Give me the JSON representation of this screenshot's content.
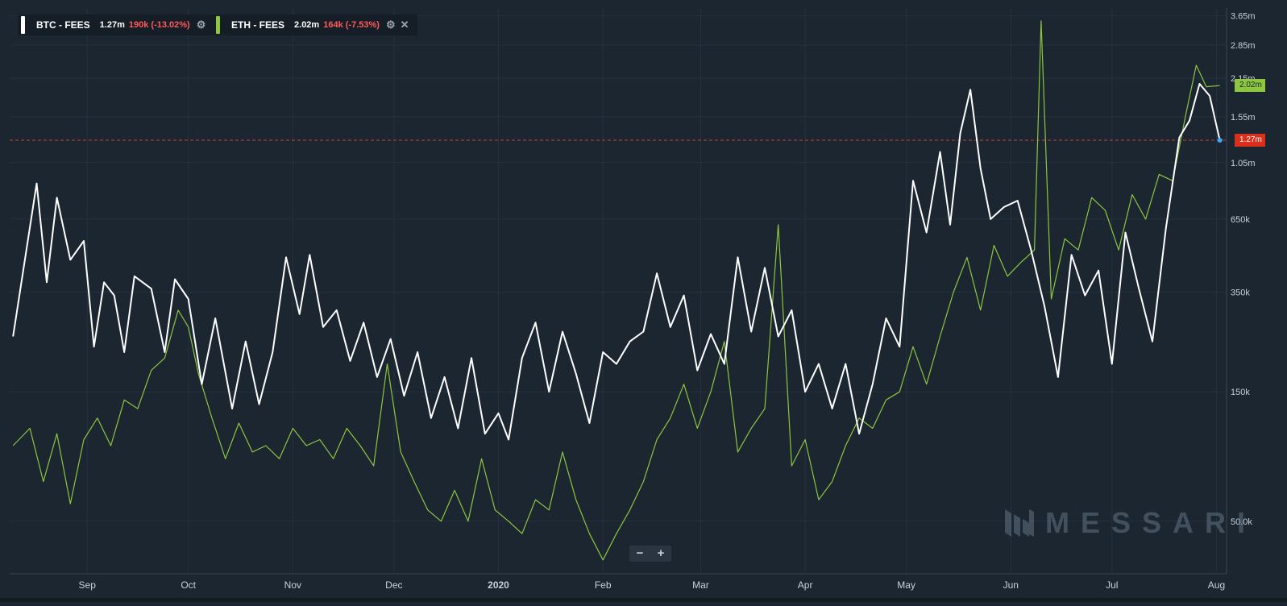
{
  "legend": {
    "btc": {
      "name": "BTC - FEES",
      "value": "1.27m",
      "change": "190k (-13.02%)",
      "color": "#ffffff",
      "change_color": "#ff5a5a"
    },
    "eth": {
      "name": "ETH - FEES",
      "value": "2.02m",
      "change": "164k (-7.53%)",
      "color": "#8dc63f",
      "change_color": "#ff5a5a"
    }
  },
  "price_tags": {
    "btc": {
      "label": "1.27m",
      "color": "#d9301c"
    },
    "eth": {
      "label": "2.02m",
      "color": "#8dc63f"
    }
  },
  "watermark": "MESSARI",
  "zoom": {
    "minus": "−",
    "plus": "+"
  },
  "colors": {
    "background": "#1b2631",
    "grid": "#263340",
    "reference_line": "#e8473b",
    "axis_text": "#c9d1d9"
  },
  "chart_data": {
    "type": "line",
    "y_scale": "log",
    "x_ticks": [
      "Sep",
      "Oct",
      "Nov",
      "Dec",
      "2020",
      "Feb",
      "Mar",
      "Apr",
      "May",
      "Jun",
      "Jul",
      "Aug"
    ],
    "y_ticks": [
      "3.65m",
      "2.85m",
      "2.15m",
      "1.55m",
      "1.05m",
      "650k",
      "350k",
      "150k",
      "50.0k"
    ],
    "reference_line": 1270000,
    "series": [
      {
        "name": "BTC - FEES",
        "color": "#ffffff",
        "values": [
          {
            "x": "2019-08-10",
            "y": 240000
          },
          {
            "x": "2019-08-17",
            "y": 880000
          },
          {
            "x": "2019-08-20",
            "y": 380000
          },
          {
            "x": "2019-08-23",
            "y": 780000
          },
          {
            "x": "2019-08-27",
            "y": 460000
          },
          {
            "x": "2019-08-31",
            "y": 540000
          },
          {
            "x": "2019-09-03",
            "y": 220000
          },
          {
            "x": "2019-09-06",
            "y": 380000
          },
          {
            "x": "2019-09-09",
            "y": 340000
          },
          {
            "x": "2019-09-12",
            "y": 210000
          },
          {
            "x": "2019-09-15",
            "y": 400000
          },
          {
            "x": "2019-09-20",
            "y": 360000
          },
          {
            "x": "2019-09-24",
            "y": 210000
          },
          {
            "x": "2019-09-27",
            "y": 390000
          },
          {
            "x": "2019-10-01",
            "y": 330000
          },
          {
            "x": "2019-10-05",
            "y": 160000
          },
          {
            "x": "2019-10-09",
            "y": 280000
          },
          {
            "x": "2019-10-14",
            "y": 130000
          },
          {
            "x": "2019-10-18",
            "y": 230000
          },
          {
            "x": "2019-10-22",
            "y": 135000
          },
          {
            "x": "2019-10-26",
            "y": 210000
          },
          {
            "x": "2019-10-30",
            "y": 470000
          },
          {
            "x": "2019-11-03",
            "y": 290000
          },
          {
            "x": "2019-11-06",
            "y": 480000
          },
          {
            "x": "2019-11-10",
            "y": 260000
          },
          {
            "x": "2019-11-14",
            "y": 300000
          },
          {
            "x": "2019-11-18",
            "y": 195000
          },
          {
            "x": "2019-11-22",
            "y": 270000
          },
          {
            "x": "2019-11-26",
            "y": 170000
          },
          {
            "x": "2019-11-30",
            "y": 235000
          },
          {
            "x": "2019-12-04",
            "y": 145000
          },
          {
            "x": "2019-12-08",
            "y": 210000
          },
          {
            "x": "2019-12-12",
            "y": 120000
          },
          {
            "x": "2019-12-16",
            "y": 170000
          },
          {
            "x": "2019-12-20",
            "y": 110000
          },
          {
            "x": "2019-12-24",
            "y": 200000
          },
          {
            "x": "2019-12-28",
            "y": 105000
          },
          {
            "x": "2020-01-01",
            "y": 125000
          },
          {
            "x": "2020-01-04",
            "y": 100000
          },
          {
            "x": "2020-01-08",
            "y": 200000
          },
          {
            "x": "2020-01-12",
            "y": 270000
          },
          {
            "x": "2020-01-16",
            "y": 150000
          },
          {
            "x": "2020-01-20",
            "y": 250000
          },
          {
            "x": "2020-01-24",
            "y": 175000
          },
          {
            "x": "2020-01-28",
            "y": 115000
          },
          {
            "x": "2020-02-01",
            "y": 210000
          },
          {
            "x": "2020-02-05",
            "y": 190000
          },
          {
            "x": "2020-02-09",
            "y": 230000
          },
          {
            "x": "2020-02-13",
            "y": 250000
          },
          {
            "x": "2020-02-17",
            "y": 410000
          },
          {
            "x": "2020-02-21",
            "y": 260000
          },
          {
            "x": "2020-02-25",
            "y": 340000
          },
          {
            "x": "2020-02-29",
            "y": 180000
          },
          {
            "x": "2020-03-04",
            "y": 245000
          },
          {
            "x": "2020-03-08",
            "y": 190000
          },
          {
            "x": "2020-03-12",
            "y": 470000
          },
          {
            "x": "2020-03-16",
            "y": 250000
          },
          {
            "x": "2020-03-20",
            "y": 430000
          },
          {
            "x": "2020-03-24",
            "y": 240000
          },
          {
            "x": "2020-03-28",
            "y": 300000
          },
          {
            "x": "2020-04-01",
            "y": 150000
          },
          {
            "x": "2020-04-05",
            "y": 190000
          },
          {
            "x": "2020-04-09",
            "y": 130000
          },
          {
            "x": "2020-04-13",
            "y": 190000
          },
          {
            "x": "2020-04-17",
            "y": 105000
          },
          {
            "x": "2020-04-21",
            "y": 160000
          },
          {
            "x": "2020-04-25",
            "y": 280000
          },
          {
            "x": "2020-04-29",
            "y": 220000
          },
          {
            "x": "2020-05-03",
            "y": 900000
          },
          {
            "x": "2020-05-07",
            "y": 580000
          },
          {
            "x": "2020-05-11",
            "y": 1150000
          },
          {
            "x": "2020-05-14",
            "y": 620000
          },
          {
            "x": "2020-05-17",
            "y": 1350000
          },
          {
            "x": "2020-05-20",
            "y": 1950000
          },
          {
            "x": "2020-05-23",
            "y": 1000000
          },
          {
            "x": "2020-05-26",
            "y": 650000
          },
          {
            "x": "2020-05-30",
            "y": 720000
          },
          {
            "x": "2020-06-03",
            "y": 760000
          },
          {
            "x": "2020-06-07",
            "y": 500000
          },
          {
            "x": "2020-06-11",
            "y": 310000
          },
          {
            "x": "2020-06-15",
            "y": 170000
          },
          {
            "x": "2020-06-19",
            "y": 480000
          },
          {
            "x": "2020-06-23",
            "y": 340000
          },
          {
            "x": "2020-06-27",
            "y": 420000
          },
          {
            "x": "2020-07-01",
            "y": 190000
          },
          {
            "x": "2020-07-05",
            "y": 580000
          },
          {
            "x": "2020-07-09",
            "y": 360000
          },
          {
            "x": "2020-07-13",
            "y": 230000
          },
          {
            "x": "2020-07-17",
            "y": 600000
          },
          {
            "x": "2020-07-21",
            "y": 1300000
          },
          {
            "x": "2020-07-24",
            "y": 1500000
          },
          {
            "x": "2020-07-27",
            "y": 2050000
          },
          {
            "x": "2020-07-30",
            "y": 1850000
          },
          {
            "x": "2020-08-02",
            "y": 1270000
          }
        ]
      },
      {
        "name": "ETH - FEES",
        "color": "#8dc63f",
        "values": [
          {
            "x": "2019-08-10",
            "y": 95000
          },
          {
            "x": "2019-08-15",
            "y": 110000
          },
          {
            "x": "2019-08-19",
            "y": 70000
          },
          {
            "x": "2019-08-23",
            "y": 105000
          },
          {
            "x": "2019-08-27",
            "y": 58000
          },
          {
            "x": "2019-08-31",
            "y": 100000
          },
          {
            "x": "2019-09-04",
            "y": 120000
          },
          {
            "x": "2019-09-08",
            "y": 95000
          },
          {
            "x": "2019-09-12",
            "y": 140000
          },
          {
            "x": "2019-09-16",
            "y": 130000
          },
          {
            "x": "2019-09-20",
            "y": 180000
          },
          {
            "x": "2019-09-24",
            "y": 200000
          },
          {
            "x": "2019-09-28",
            "y": 300000
          },
          {
            "x": "2019-10-01",
            "y": 260000
          },
          {
            "x": "2019-10-04",
            "y": 175000
          },
          {
            "x": "2019-10-08",
            "y": 120000
          },
          {
            "x": "2019-10-12",
            "y": 85000
          },
          {
            "x": "2019-10-16",
            "y": 115000
          },
          {
            "x": "2019-10-20",
            "y": 90000
          },
          {
            "x": "2019-10-24",
            "y": 95000
          },
          {
            "x": "2019-10-28",
            "y": 85000
          },
          {
            "x": "2019-11-01",
            "y": 110000
          },
          {
            "x": "2019-11-05",
            "y": 95000
          },
          {
            "x": "2019-11-09",
            "y": 100000
          },
          {
            "x": "2019-11-13",
            "y": 85000
          },
          {
            "x": "2019-11-17",
            "y": 110000
          },
          {
            "x": "2019-11-21",
            "y": 95000
          },
          {
            "x": "2019-11-25",
            "y": 80000
          },
          {
            "x": "2019-11-29",
            "y": 190000
          },
          {
            "x": "2019-12-03",
            "y": 90000
          },
          {
            "x": "2019-12-07",
            "y": 70000
          },
          {
            "x": "2019-12-11",
            "y": 55000
          },
          {
            "x": "2019-12-15",
            "y": 50000
          },
          {
            "x": "2019-12-19",
            "y": 65000
          },
          {
            "x": "2019-12-23",
            "y": 50000
          },
          {
            "x": "2019-12-27",
            "y": 85000
          },
          {
            "x": "2019-12-31",
            "y": 55000
          },
          {
            "x": "2020-01-04",
            "y": 50000
          },
          {
            "x": "2020-01-08",
            "y": 45000
          },
          {
            "x": "2020-01-12",
            "y": 60000
          },
          {
            "x": "2020-01-16",
            "y": 55000
          },
          {
            "x": "2020-01-20",
            "y": 90000
          },
          {
            "x": "2020-01-24",
            "y": 60000
          },
          {
            "x": "2020-01-28",
            "y": 45000
          },
          {
            "x": "2020-02-01",
            "y": 36000
          },
          {
            "x": "2020-02-05",
            "y": 45000
          },
          {
            "x": "2020-02-09",
            "y": 55000
          },
          {
            "x": "2020-02-13",
            "y": 70000
          },
          {
            "x": "2020-02-17",
            "y": 100000
          },
          {
            "x": "2020-02-21",
            "y": 120000
          },
          {
            "x": "2020-02-25",
            "y": 160000
          },
          {
            "x": "2020-02-29",
            "y": 110000
          },
          {
            "x": "2020-03-04",
            "y": 150000
          },
          {
            "x": "2020-03-08",
            "y": 230000
          },
          {
            "x": "2020-03-12",
            "y": 90000
          },
          {
            "x": "2020-03-16",
            "y": 110000
          },
          {
            "x": "2020-03-20",
            "y": 130000
          },
          {
            "x": "2020-03-24",
            "y": 620000
          },
          {
            "x": "2020-03-28",
            "y": 80000
          },
          {
            "x": "2020-04-01",
            "y": 100000
          },
          {
            "x": "2020-04-05",
            "y": 60000
          },
          {
            "x": "2020-04-09",
            "y": 70000
          },
          {
            "x": "2020-04-13",
            "y": 95000
          },
          {
            "x": "2020-04-17",
            "y": 120000
          },
          {
            "x": "2020-04-21",
            "y": 110000
          },
          {
            "x": "2020-04-25",
            "y": 140000
          },
          {
            "x": "2020-04-29",
            "y": 150000
          },
          {
            "x": "2020-05-03",
            "y": 220000
          },
          {
            "x": "2020-05-07",
            "y": 160000
          },
          {
            "x": "2020-05-11",
            "y": 240000
          },
          {
            "x": "2020-05-15",
            "y": 350000
          },
          {
            "x": "2020-05-19",
            "y": 470000
          },
          {
            "x": "2020-05-23",
            "y": 300000
          },
          {
            "x": "2020-05-27",
            "y": 520000
          },
          {
            "x": "2020-05-31",
            "y": 400000
          },
          {
            "x": "2020-06-04",
            "y": 450000
          },
          {
            "x": "2020-06-08",
            "y": 500000
          },
          {
            "x": "2020-06-10",
            "y": 3500000
          },
          {
            "x": "2020-06-13",
            "y": 330000
          },
          {
            "x": "2020-06-17",
            "y": 550000
          },
          {
            "x": "2020-06-21",
            "y": 500000
          },
          {
            "x": "2020-06-25",
            "y": 780000
          },
          {
            "x": "2020-06-29",
            "y": 700000
          },
          {
            "x": "2020-07-03",
            "y": 500000
          },
          {
            "x": "2020-07-07",
            "y": 800000
          },
          {
            "x": "2020-07-11",
            "y": 650000
          },
          {
            "x": "2020-07-15",
            "y": 950000
          },
          {
            "x": "2020-07-19",
            "y": 900000
          },
          {
            "x": "2020-07-23",
            "y": 1600000
          },
          {
            "x": "2020-07-26",
            "y": 2400000
          },
          {
            "x": "2020-07-29",
            "y": 2000000
          },
          {
            "x": "2020-08-02",
            "y": 2020000
          }
        ]
      }
    ]
  }
}
